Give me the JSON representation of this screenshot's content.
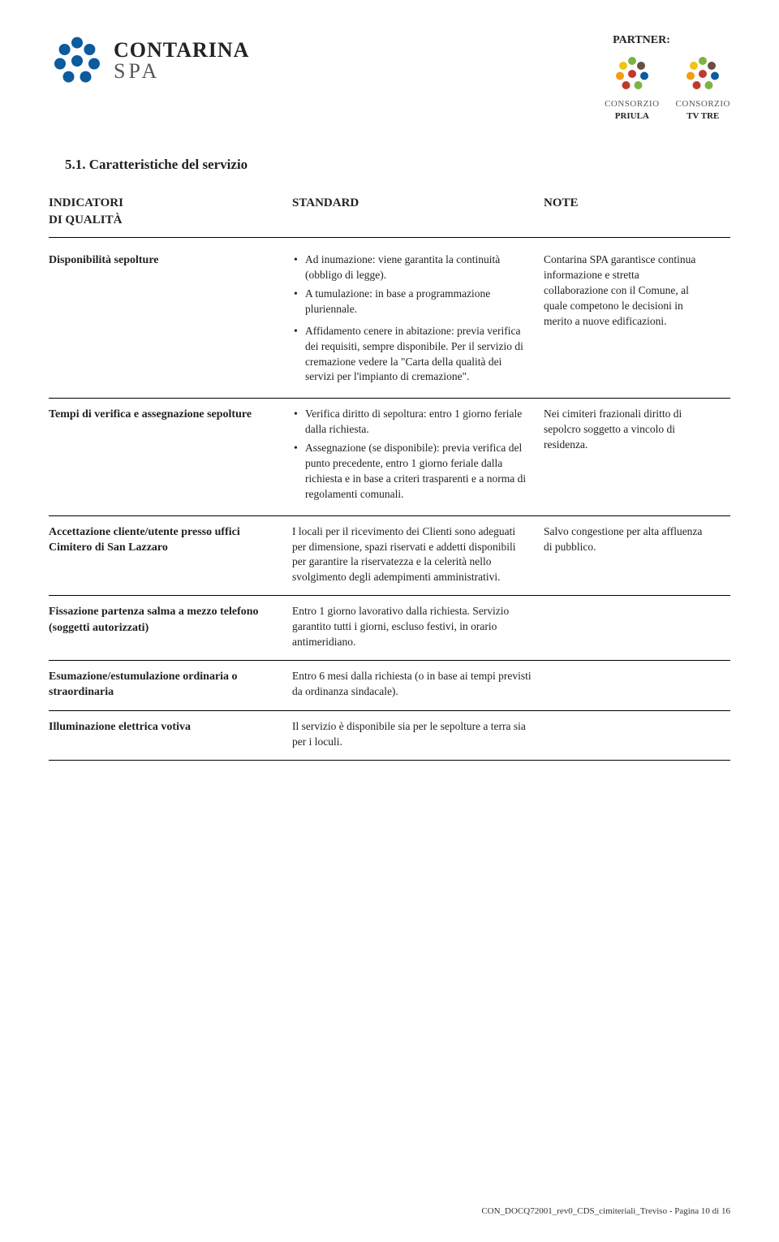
{
  "header": {
    "partner_label": "PARTNER:",
    "brand_line1": "CONTARINA",
    "brand_line2": "SPA",
    "partner1_line1": "CONSORZIO",
    "partner1_line2": "PRIULA",
    "partner2_line1": "CONSORZIO",
    "partner2_line2": "TV TRE",
    "logo_colors": {
      "blue": "#0b5b9e",
      "green": "#7cb342",
      "orange": "#f39c12",
      "red": "#c0392b",
      "brown": "#6d4c41",
      "yellow": "#f1c40f"
    }
  },
  "section_title": "5.1. Caratteristiche del servizio",
  "table_header": {
    "col1_line1": "INDICATORI",
    "col1_line2": "DI QUALITÀ",
    "col2": "STANDARD",
    "col3": "NOTE"
  },
  "rows": [
    {
      "indicator": "Disponibilità sepolture",
      "standard_bullets": [
        "Ad inumazione: viene garantita la continuità (obbligo di legge).",
        "A tumulazione: in base a programmazione pluriennale.",
        "Affidamento cenere in abitazione: previa verifica dei requisiti, sempre disponibile. Per il servizio di cremazione vedere la \"Carta della qualità dei servizi per l'impianto di cremazione\"."
      ],
      "standard_text": "",
      "note": "Contarina SPA garantisce continua informazione e stretta collaborazione con il Comune, al quale competono le decisioni in merito a nuove edificazioni."
    },
    {
      "indicator": "Tempi di verifica e assegnazione sepolture",
      "standard_bullets": [
        "Verifica diritto di sepoltura: entro 1 giorno feriale dalla richiesta.",
        "Assegnazione (se disponibile): previa verifica del punto precedente, entro 1 giorno feriale dalla richiesta e in base a criteri trasparenti e a norma di regolamenti comunali."
      ],
      "standard_text": "",
      "note": "Nei cimiteri frazionali diritto di sepolcro soggetto a vincolo di residenza."
    },
    {
      "indicator": "Accettazione cliente/utente presso uffici Cimitero di San Lazzaro",
      "standard_bullets": [],
      "standard_text": "I locali per il ricevimento dei Clienti sono adeguati per dimensione, spazi riservati e addetti disponibili per garantire la riservatezza e la celerità nello svolgimento degli adempimenti amministrativi.",
      "note": "Salvo congestione per alta affluenza di pubblico."
    },
    {
      "indicator": "Fissazione partenza salma a mezzo telefono (soggetti autorizzati)",
      "standard_bullets": [],
      "standard_text": "Entro 1 giorno lavorativo dalla richiesta. Servizio garantito tutti i giorni, escluso festivi, in orario antimeridiano.",
      "note": ""
    },
    {
      "indicator": "Esumazione/estumulazione ordinaria o straordinaria",
      "standard_bullets": [],
      "standard_text": "Entro 6 mesi dalla richiesta (o in base ai tempi previsti da ordinanza sindacale).",
      "note": ""
    },
    {
      "indicator": "Illuminazione elettrica votiva",
      "standard_bullets": [],
      "standard_text": "Il servizio è disponibile sia per le sepolture a terra sia per i loculi.",
      "note": ""
    }
  ],
  "footer": "CON_DOCQ72001_rev0_CDS_cimiteriali_Treviso - Pagina 10 di 16"
}
